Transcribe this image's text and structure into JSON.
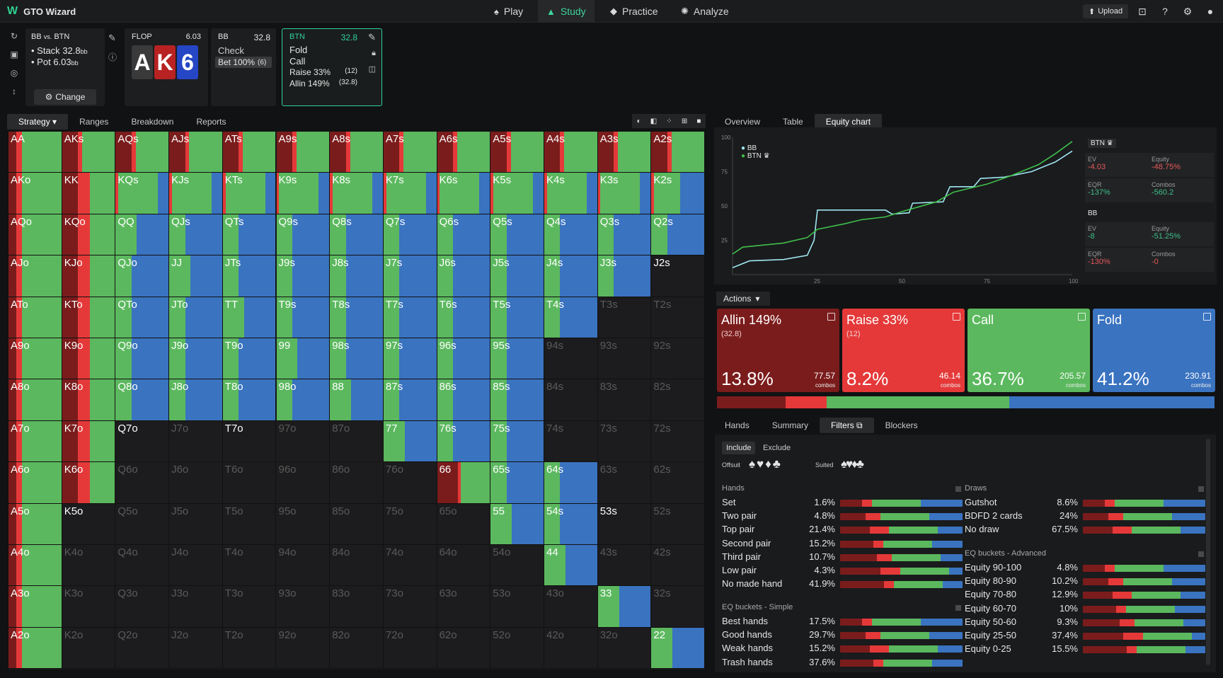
{
  "app": {
    "name": "GTO Wizard",
    "logo": "W"
  },
  "nav": [
    {
      "label": "Play",
      "icon": "play-icon",
      "glyph": "♠"
    },
    {
      "label": "Study",
      "icon": "study-icon",
      "glyph": "▲"
    },
    {
      "label": "Practice",
      "icon": "practice-icon",
      "glyph": "◆"
    },
    {
      "label": "Analyze",
      "icon": "analyze-icon",
      "glyph": "✺"
    }
  ],
  "topright": {
    "upload": "Upload"
  },
  "colors": {
    "allin": "#7b1c1c",
    "raise": "#e53939",
    "call": "#5bb85e",
    "fold": "#3a73c0",
    "accent": "#2fd0a0"
  },
  "matchup": {
    "title_a": "BB",
    "title_vs": "vs.",
    "title_b": "BTN",
    "stack_label": "Stack",
    "stack_val": "32.8",
    "stack_unit": "bb",
    "pot_label": "Pot",
    "pot_val": "6.03",
    "pot_unit": "bb",
    "change": "Change"
  },
  "flop": {
    "label": "FLOP",
    "pot": "6.03",
    "cards": [
      {
        "rank": "A",
        "color": "#3a3a3a"
      },
      {
        "rank": "K",
        "color": "#b82222"
      },
      {
        "rank": "6",
        "color": "#2546c5"
      }
    ]
  },
  "bb": {
    "label": "BB",
    "stack": "32.8",
    "action1": "Check",
    "action2": "Bet 100%",
    "action2_sub": "(6)"
  },
  "btn": {
    "label": "BTN",
    "stack": "32.8",
    "actions": [
      {
        "t": "Fold",
        "s": ""
      },
      {
        "t": "Call",
        "s": ""
      },
      {
        "t": "Raise 33%",
        "s": "(12)"
      },
      {
        "t": "Allin 149%",
        "s": "(32.8)"
      }
    ]
  },
  "left_tabs": [
    "Strategy",
    "Ranges",
    "Breakdown",
    "Reports"
  ],
  "right_tabs": [
    "Overview",
    "Table",
    "Equity chart"
  ],
  "grid_labels": [
    [
      "AA",
      "AKs",
      "AQs",
      "AJs",
      "ATs",
      "A9s",
      "A8s",
      "A7s",
      "A6s",
      "A5s",
      "A4s",
      "A3s",
      "A2s"
    ],
    [
      "AKo",
      "KK",
      "KQs",
      "KJs",
      "KTs",
      "K9s",
      "K8s",
      "K7s",
      "K6s",
      "K5s",
      "K4s",
      "K3s",
      "K2s"
    ],
    [
      "AQo",
      "KQo",
      "QQ",
      "QJs",
      "QTs",
      "Q9s",
      "Q8s",
      "Q7s",
      "Q6s",
      "Q5s",
      "Q4s",
      "Q3s",
      "Q2s"
    ],
    [
      "AJo",
      "KJo",
      "QJo",
      "JJ",
      "JTs",
      "J9s",
      "J8s",
      "J7s",
      "J6s",
      "J5s",
      "J4s",
      "J3s",
      "J2s"
    ],
    [
      "ATo",
      "KTo",
      "QTo",
      "JTo",
      "TT",
      "T9s",
      "T8s",
      "T7s",
      "T6s",
      "T5s",
      "T4s",
      "T3s",
      "T2s"
    ],
    [
      "A9o",
      "K9o",
      "Q9o",
      "J9o",
      "T9o",
      "99",
      "98s",
      "97s",
      "96s",
      "95s",
      "94s",
      "93s",
      "92s"
    ],
    [
      "A8o",
      "K8o",
      "Q8o",
      "J8o",
      "T8o",
      "98o",
      "88",
      "87s",
      "86s",
      "85s",
      "84s",
      "83s",
      "82s"
    ],
    [
      "A7o",
      "K7o",
      "Q7o",
      "J7o",
      "T7o",
      "97o",
      "87o",
      "77",
      "76s",
      "75s",
      "74s",
      "73s",
      "72s"
    ],
    [
      "A6o",
      "K6o",
      "Q6o",
      "J6o",
      "T6o",
      "96o",
      "86o",
      "76o",
      "66",
      "65s",
      "64s",
      "63s",
      "62s"
    ],
    [
      "A5o",
      "K5o",
      "Q5o",
      "J5o",
      "T5o",
      "95o",
      "85o",
      "75o",
      "65o",
      "55",
      "54s",
      "53s",
      "52s"
    ],
    [
      "A4o",
      "K4o",
      "Q4o",
      "J4o",
      "T4o",
      "94o",
      "84o",
      "74o",
      "64o",
      "54o",
      "44",
      "43s",
      "42s"
    ],
    [
      "A3o",
      "K3o",
      "Q3o",
      "J3o",
      "T3o",
      "93o",
      "83o",
      "73o",
      "63o",
      "53o",
      "43o",
      "33",
      "32s"
    ],
    [
      "A2o",
      "K2o",
      "Q2o",
      "J2o",
      "T2o",
      "92o",
      "82o",
      "72o",
      "62o",
      "52o",
      "42o",
      "32o",
      "22"
    ]
  ],
  "equity_chart": {
    "y_ticks": [
      "100",
      "75",
      "50",
      "25"
    ],
    "x_ticks": [
      "25",
      "50",
      "75",
      "100"
    ],
    "legend": [
      {
        "name": "BB",
        "color": "#9ee6f0"
      },
      {
        "name": "BTN",
        "color": "#3fbf4a"
      }
    ]
  },
  "btn_stats": {
    "label": "BTN",
    "ev_l": "EV",
    "ev": "-4.03",
    "eq_l": "Equity",
    "eq": "-48.75%",
    "eqr_l": "EQR",
    "eqr": "-137%",
    "co_l": "Combos",
    "co": "-560.2"
  },
  "bb_stats": {
    "label": "BB",
    "ev_l": "EV",
    "ev": "-8",
    "eq_l": "Equity",
    "eq": "-51.25%",
    "eqr_l": "EQR",
    "eqr": "-130%",
    "co_l": "Combos",
    "co": "-0"
  },
  "actions_label": "Actions",
  "action_boxes": [
    {
      "name": "Allin 149%",
      "sub": "(32.8)",
      "pct": "13.8%",
      "combos": "77.57",
      "clabel": "combos",
      "frac": 13.8
    },
    {
      "name": "Raise 33%",
      "sub": "(12)",
      "pct": "8.2%",
      "combos": "46.14",
      "clabel": "combos",
      "frac": 8.2
    },
    {
      "name": "Call",
      "sub": "",
      "pct": "36.7%",
      "combos": "205.57",
      "clabel": "combos",
      "frac": 36.7
    },
    {
      "name": "Fold",
      "sub": "",
      "pct": "41.2%",
      "combos": "230.91",
      "clabel": "combos",
      "frac": 41.2
    }
  ],
  "lower_tabs": [
    "Hands",
    "Summary",
    "Filters",
    "Blockers"
  ],
  "filters": {
    "include": "Include",
    "exclude": "Exclude",
    "offsuit": "Offsuit",
    "suited": "Suited",
    "offsuit_icons": "♠♥♦♣",
    "suited_icons": "♠♥♦♣"
  },
  "hands_section": {
    "title": "Hands",
    "rows": [
      [
        "Set",
        "1.6%"
      ],
      [
        "Two pair",
        "4.8%"
      ],
      [
        "Top pair",
        "21.4%"
      ],
      [
        "Second pair",
        "15.2%"
      ],
      [
        "Third pair",
        "10.7%"
      ],
      [
        "Low pair",
        "4.3%"
      ],
      [
        "No made hand",
        "41.9%"
      ]
    ]
  },
  "eq_simple": {
    "title": "EQ buckets - Simple",
    "rows": [
      [
        "Best hands",
        "17.5%"
      ],
      [
        "Good hands",
        "29.7%"
      ],
      [
        "Weak hands",
        "15.2%"
      ],
      [
        "Trash hands",
        "37.6%"
      ]
    ]
  },
  "draws": {
    "title": "Draws",
    "rows": [
      [
        "Gutshot",
        "8.6%"
      ],
      [
        "BDFD 2 cards",
        "24%"
      ],
      [
        "No draw",
        "67.5%"
      ]
    ]
  },
  "eq_adv": {
    "title": "EQ buckets - Advanced",
    "rows": [
      [
        "Equity 90-100",
        "4.8%"
      ],
      [
        "Equity 80-90",
        "10.2%"
      ],
      [
        "Equity 70-80",
        "12.9%"
      ],
      [
        "Equity 60-70",
        "10%"
      ],
      [
        "Equity 50-60",
        "9.3%"
      ],
      [
        "Equity 25-50",
        "37.4%"
      ],
      [
        "Equity 0-25",
        "15.5%"
      ]
    ]
  }
}
